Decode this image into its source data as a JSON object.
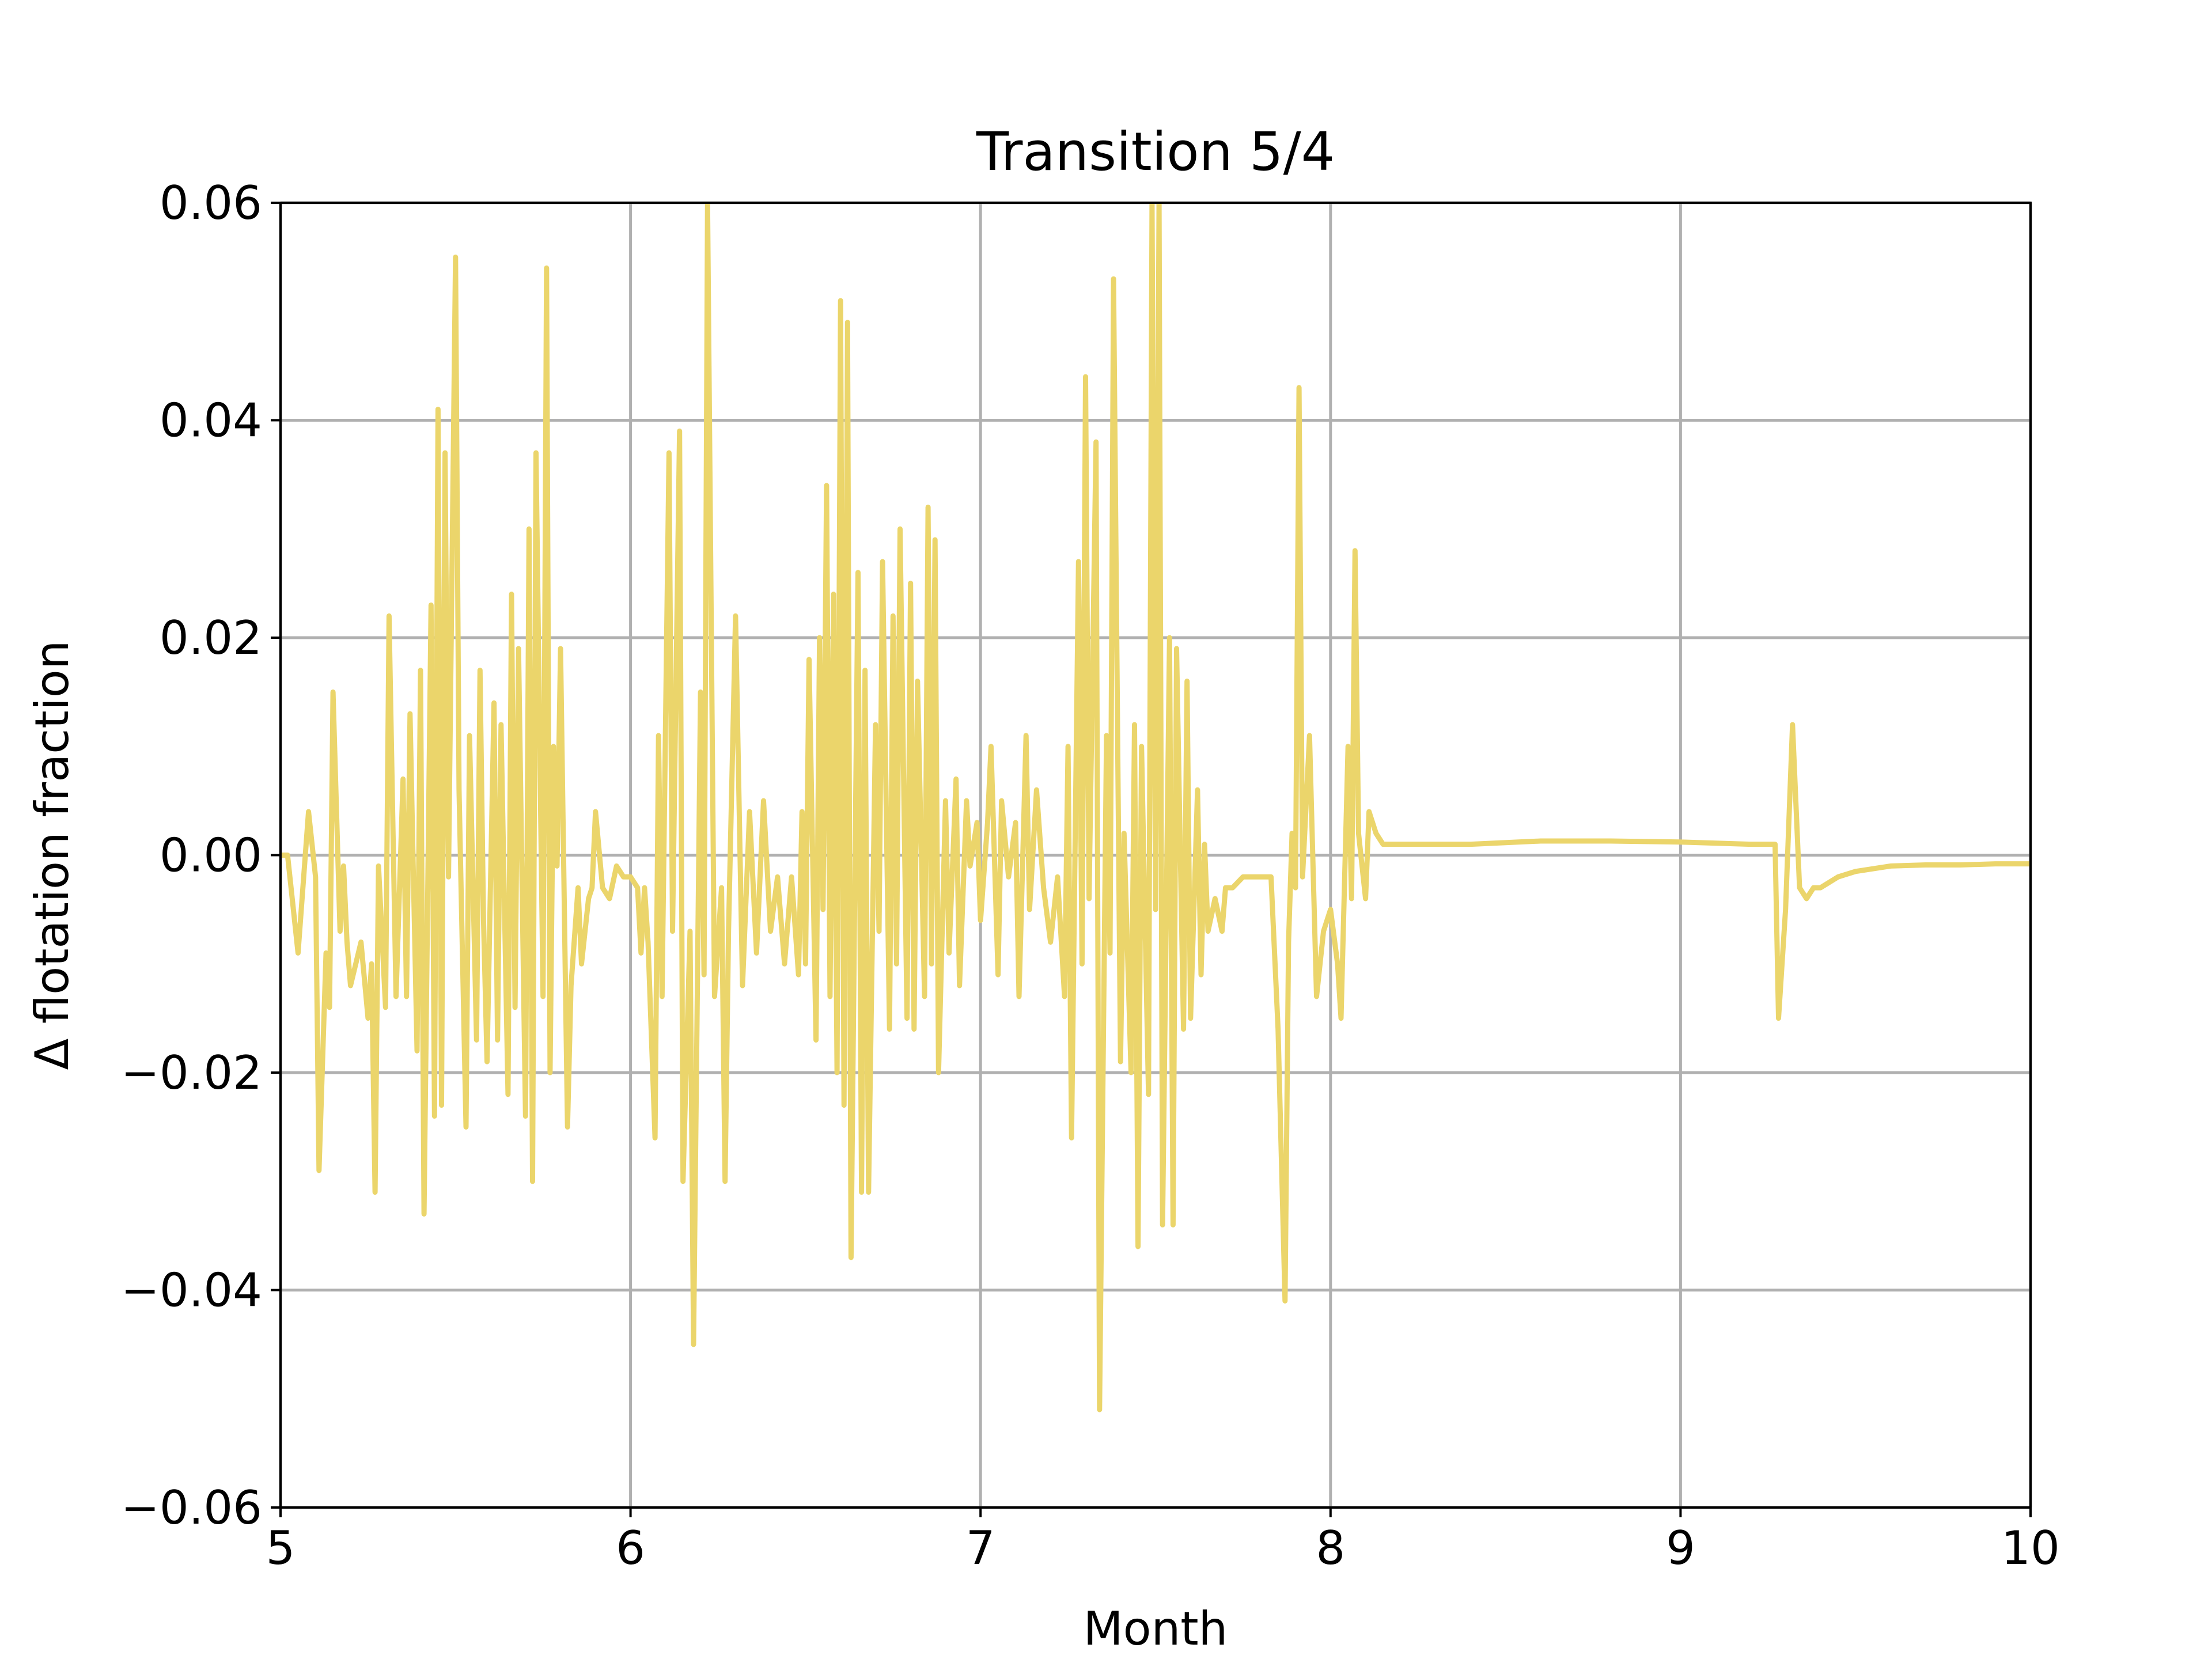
{
  "colors": {
    "series": "#ebd56b",
    "grid": "#b0b0b0",
    "axis": "#000000"
  },
  "chart_data": {
    "type": "line",
    "title": "Transition 5/4",
    "xlabel": "Month",
    "ylabel": "Δ flotation fraction",
    "xlim": [
      5,
      10
    ],
    "ylim": [
      -0.06,
      0.06
    ],
    "x_ticks": [
      5,
      6,
      7,
      8,
      9,
      10
    ],
    "x_tick_labels": [
      "5",
      "6",
      "7",
      "8",
      "9",
      "10"
    ],
    "y_ticks": [
      -0.06,
      -0.04,
      -0.02,
      0.0,
      0.02,
      0.04,
      0.06
    ],
    "y_tick_labels": [
      "−0.06",
      "−0.04",
      "−0.02",
      "0.00",
      "0.02",
      "0.04",
      "0.06"
    ],
    "grid": true,
    "legend": "none",
    "series": [
      {
        "color": "#ebd56b",
        "points": [
          [
            5.0,
            0.0
          ],
          [
            5.02,
            0.0
          ],
          [
            5.05,
            -0.009
          ],
          [
            5.08,
            0.004
          ],
          [
            5.1,
            -0.002
          ],
          [
            5.11,
            -0.029
          ],
          [
            5.13,
            -0.009
          ],
          [
            5.14,
            -0.014
          ],
          [
            5.15,
            0.015
          ],
          [
            5.17,
            -0.007
          ],
          [
            5.18,
            -0.001
          ],
          [
            5.19,
            -0.008
          ],
          [
            5.2,
            -0.012
          ],
          [
            5.23,
            -0.008
          ],
          [
            5.25,
            -0.015
          ],
          [
            5.26,
            -0.01
          ],
          [
            5.27,
            -0.031
          ],
          [
            5.28,
            -0.001
          ],
          [
            5.3,
            -0.014
          ],
          [
            5.31,
            0.022
          ],
          [
            5.33,
            -0.013
          ],
          [
            5.35,
            0.007
          ],
          [
            5.36,
            -0.013
          ],
          [
            5.37,
            0.013
          ],
          [
            5.39,
            -0.018
          ],
          [
            5.4,
            0.017
          ],
          [
            5.41,
            -0.033
          ],
          [
            5.43,
            0.023
          ],
          [
            5.44,
            -0.024
          ],
          [
            5.45,
            0.041
          ],
          [
            5.46,
            -0.023
          ],
          [
            5.47,
            0.037
          ],
          [
            5.48,
            -0.002
          ],
          [
            5.5,
            0.055
          ],
          [
            5.51,
            0.006
          ],
          [
            5.53,
            -0.025
          ],
          [
            5.54,
            0.011
          ],
          [
            5.56,
            -0.017
          ],
          [
            5.57,
            0.017
          ],
          [
            5.58,
            -0.006
          ],
          [
            5.59,
            -0.019
          ],
          [
            5.61,
            0.014
          ],
          [
            5.62,
            -0.017
          ],
          [
            5.63,
            0.012
          ],
          [
            5.65,
            -0.022
          ],
          [
            5.66,
            0.024
          ],
          [
            5.67,
            -0.014
          ],
          [
            5.68,
            0.019
          ],
          [
            5.7,
            -0.024
          ],
          [
            5.71,
            0.03
          ],
          [
            5.72,
            -0.03
          ],
          [
            5.73,
            0.037
          ],
          [
            5.75,
            -0.013
          ],
          [
            5.76,
            0.054
          ],
          [
            5.77,
            -0.02
          ],
          [
            5.78,
            0.01
          ],
          [
            5.79,
            -0.001
          ],
          [
            5.8,
            0.019
          ],
          [
            5.82,
            -0.025
          ],
          [
            5.83,
            -0.012
          ],
          [
            5.85,
            -0.003
          ],
          [
            5.86,
            -0.01
          ],
          [
            5.88,
            -0.004
          ],
          [
            5.89,
            -0.003
          ],
          [
            5.9,
            0.004
          ],
          [
            5.92,
            -0.003
          ],
          [
            5.94,
            -0.004
          ],
          [
            5.96,
            -0.001
          ],
          [
            5.98,
            -0.002
          ],
          [
            6.0,
            -0.002
          ],
          [
            6.02,
            -0.003
          ],
          [
            6.03,
            -0.009
          ],
          [
            6.04,
            -0.003
          ],
          [
            6.05,
            -0.008
          ],
          [
            6.07,
            -0.026
          ],
          [
            6.08,
            0.011
          ],
          [
            6.09,
            -0.013
          ],
          [
            6.11,
            0.037
          ],
          [
            6.12,
            -0.007
          ],
          [
            6.14,
            0.039
          ],
          [
            6.15,
            -0.03
          ],
          [
            6.17,
            -0.007
          ],
          [
            6.18,
            -0.045
          ],
          [
            6.2,
            0.015
          ],
          [
            6.21,
            -0.011
          ],
          [
            6.22,
            0.06
          ],
          [
            6.24,
            -0.013
          ],
          [
            6.26,
            -0.003
          ],
          [
            6.27,
            -0.03
          ],
          [
            6.28,
            -0.007
          ],
          [
            6.3,
            0.022
          ],
          [
            6.32,
            -0.012
          ],
          [
            6.34,
            0.004
          ],
          [
            6.36,
            -0.009
          ],
          [
            6.38,
            0.005
          ],
          [
            6.4,
            -0.007
          ],
          [
            6.42,
            -0.002
          ],
          [
            6.44,
            -0.01
          ],
          [
            6.46,
            -0.002
          ],
          [
            6.48,
            -0.011
          ],
          [
            6.49,
            0.004
          ],
          [
            6.5,
            -0.01
          ],
          [
            6.51,
            0.018
          ],
          [
            6.53,
            -0.017
          ],
          [
            6.54,
            0.02
          ],
          [
            6.55,
            -0.005
          ],
          [
            6.56,
            0.034
          ],
          [
            6.57,
            -0.013
          ],
          [
            6.58,
            0.024
          ],
          [
            6.59,
            -0.02
          ],
          [
            6.6,
            0.051
          ],
          [
            6.61,
            -0.023
          ],
          [
            6.62,
            0.049
          ],
          [
            6.63,
            -0.037
          ],
          [
            6.65,
            0.026
          ],
          [
            6.66,
            -0.031
          ],
          [
            6.67,
            0.017
          ],
          [
            6.68,
            -0.031
          ],
          [
            6.7,
            0.012
          ],
          [
            6.71,
            -0.007
          ],
          [
            6.72,
            0.027
          ],
          [
            6.74,
            -0.016
          ],
          [
            6.75,
            0.022
          ],
          [
            6.76,
            -0.01
          ],
          [
            6.77,
            0.03
          ],
          [
            6.79,
            -0.015
          ],
          [
            6.8,
            0.025
          ],
          [
            6.81,
            -0.016
          ],
          [
            6.82,
            0.016
          ],
          [
            6.84,
            -0.013
          ],
          [
            6.85,
            0.032
          ],
          [
            6.86,
            -0.01
          ],
          [
            6.87,
            0.029
          ],
          [
            6.88,
            -0.02
          ],
          [
            6.9,
            0.005
          ],
          [
            6.91,
            -0.009
          ],
          [
            6.93,
            0.007
          ],
          [
            6.94,
            -0.012
          ],
          [
            6.96,
            0.005
          ],
          [
            6.97,
            -0.001
          ],
          [
            6.99,
            0.003
          ],
          [
            7.0,
            -0.006
          ],
          [
            7.02,
            0.003
          ],
          [
            7.03,
            0.01
          ],
          [
            7.05,
            -0.011
          ],
          [
            7.06,
            0.005
          ],
          [
            7.08,
            -0.002
          ],
          [
            7.1,
            0.003
          ],
          [
            7.11,
            -0.013
          ],
          [
            7.13,
            0.011
          ],
          [
            7.14,
            -0.005
          ],
          [
            7.16,
            0.006
          ],
          [
            7.18,
            -0.003
          ],
          [
            7.2,
            -0.008
          ],
          [
            7.22,
            -0.002
          ],
          [
            7.24,
            -0.013
          ],
          [
            7.25,
            0.01
          ],
          [
            7.26,
            -0.026
          ],
          [
            7.28,
            0.027
          ],
          [
            7.29,
            -0.01
          ],
          [
            7.3,
            0.044
          ],
          [
            7.31,
            -0.004
          ],
          [
            7.33,
            0.038
          ],
          [
            7.34,
            -0.051
          ],
          [
            7.36,
            0.011
          ],
          [
            7.37,
            -0.009
          ],
          [
            7.38,
            0.053
          ],
          [
            7.4,
            -0.019
          ],
          [
            7.41,
            0.002
          ],
          [
            7.43,
            -0.02
          ],
          [
            7.44,
            0.012
          ],
          [
            7.45,
            -0.036
          ],
          [
            7.46,
            0.01
          ],
          [
            7.48,
            -0.022
          ],
          [
            7.49,
            0.06
          ],
          [
            7.5,
            -0.005
          ],
          [
            7.51,
            0.06
          ],
          [
            7.52,
            -0.034
          ],
          [
            7.54,
            0.02
          ],
          [
            7.55,
            -0.034
          ],
          [
            7.56,
            0.019
          ],
          [
            7.58,
            -0.016
          ],
          [
            7.59,
            0.016
          ],
          [
            7.6,
            -0.015
          ],
          [
            7.62,
            0.006
          ],
          [
            7.63,
            -0.011
          ],
          [
            7.64,
            0.001
          ],
          [
            7.65,
            -0.007
          ],
          [
            7.67,
            -0.004
          ],
          [
            7.69,
            -0.007
          ],
          [
            7.7,
            -0.003
          ],
          [
            7.72,
            -0.003
          ],
          [
            7.75,
            -0.002
          ],
          [
            7.8,
            -0.002
          ],
          [
            7.83,
            -0.002
          ],
          [
            7.85,
            -0.016
          ],
          [
            7.87,
            -0.041
          ],
          [
            7.88,
            -0.008
          ],
          [
            7.89,
            0.002
          ],
          [
            7.9,
            -0.003
          ],
          [
            7.91,
            0.043
          ],
          [
            7.92,
            -0.002
          ],
          [
            7.94,
            0.011
          ],
          [
            7.96,
            -0.013
          ],
          [
            7.98,
            -0.007
          ],
          [
            8.0,
            -0.005
          ],
          [
            8.02,
            -0.01
          ],
          [
            8.03,
            -0.015
          ],
          [
            8.05,
            0.01
          ],
          [
            8.06,
            -0.004
          ],
          [
            8.07,
            0.028
          ],
          [
            8.08,
            0.002
          ],
          [
            8.1,
            -0.004
          ],
          [
            8.11,
            0.004
          ],
          [
            8.13,
            0.002
          ],
          [
            8.15,
            0.001
          ],
          [
            8.2,
            0.001
          ],
          [
            8.3,
            0.001
          ],
          [
            8.4,
            0.001
          ],
          [
            8.6,
            0.0013
          ],
          [
            8.8,
            0.0013
          ],
          [
            9.0,
            0.0012
          ],
          [
            9.2,
            0.001
          ],
          [
            9.27,
            0.001
          ],
          [
            9.28,
            -0.015
          ],
          [
            9.3,
            -0.005
          ],
          [
            9.32,
            0.012
          ],
          [
            9.34,
            -0.003
          ],
          [
            9.36,
            -0.004
          ],
          [
            9.38,
            -0.003
          ],
          [
            9.4,
            -0.003
          ],
          [
            9.45,
            -0.002
          ],
          [
            9.5,
            -0.0015
          ],
          [
            9.6,
            -0.001
          ],
          [
            9.7,
            -0.0009
          ],
          [
            9.8,
            -0.0009
          ],
          [
            9.9,
            -0.0008
          ],
          [
            10.0,
            -0.0008
          ]
        ]
      }
    ]
  }
}
